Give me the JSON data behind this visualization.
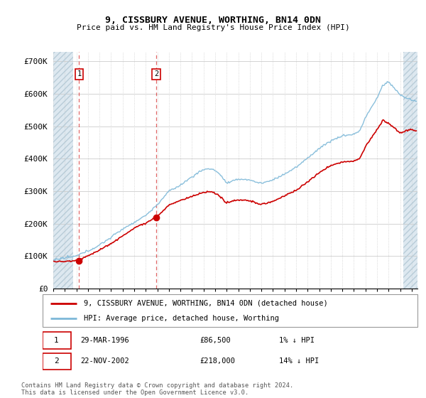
{
  "title1": "9, CISSBURY AVENUE, WORTHING, BN14 0DN",
  "title2": "Price paid vs. HM Land Registry's House Price Index (HPI)",
  "ylabel_ticks": [
    "£0",
    "£100K",
    "£200K",
    "£300K",
    "£400K",
    "£500K",
    "£600K",
    "£700K"
  ],
  "ytick_vals": [
    0,
    100000,
    200000,
    300000,
    400000,
    500000,
    600000,
    700000
  ],
  "ylim": [
    0,
    730000
  ],
  "xlim_start": 1994.0,
  "xlim_end": 2025.5,
  "purchase1_date": 1996.24,
  "purchase1_price": 86500,
  "purchase2_date": 2002.9,
  "purchase2_price": 218000,
  "legend_line1": "9, CISSBURY AVENUE, WORTHING, BN14 0DN (detached house)",
  "legend_line2": "HPI: Average price, detached house, Worthing",
  "hpi_color": "#7db8d8",
  "price_color": "#cc0000",
  "hatch_color": "#dde8f0",
  "footer": "Contains HM Land Registry data © Crown copyright and database right 2024.\nThis data is licensed under the Open Government Licence v3.0."
}
